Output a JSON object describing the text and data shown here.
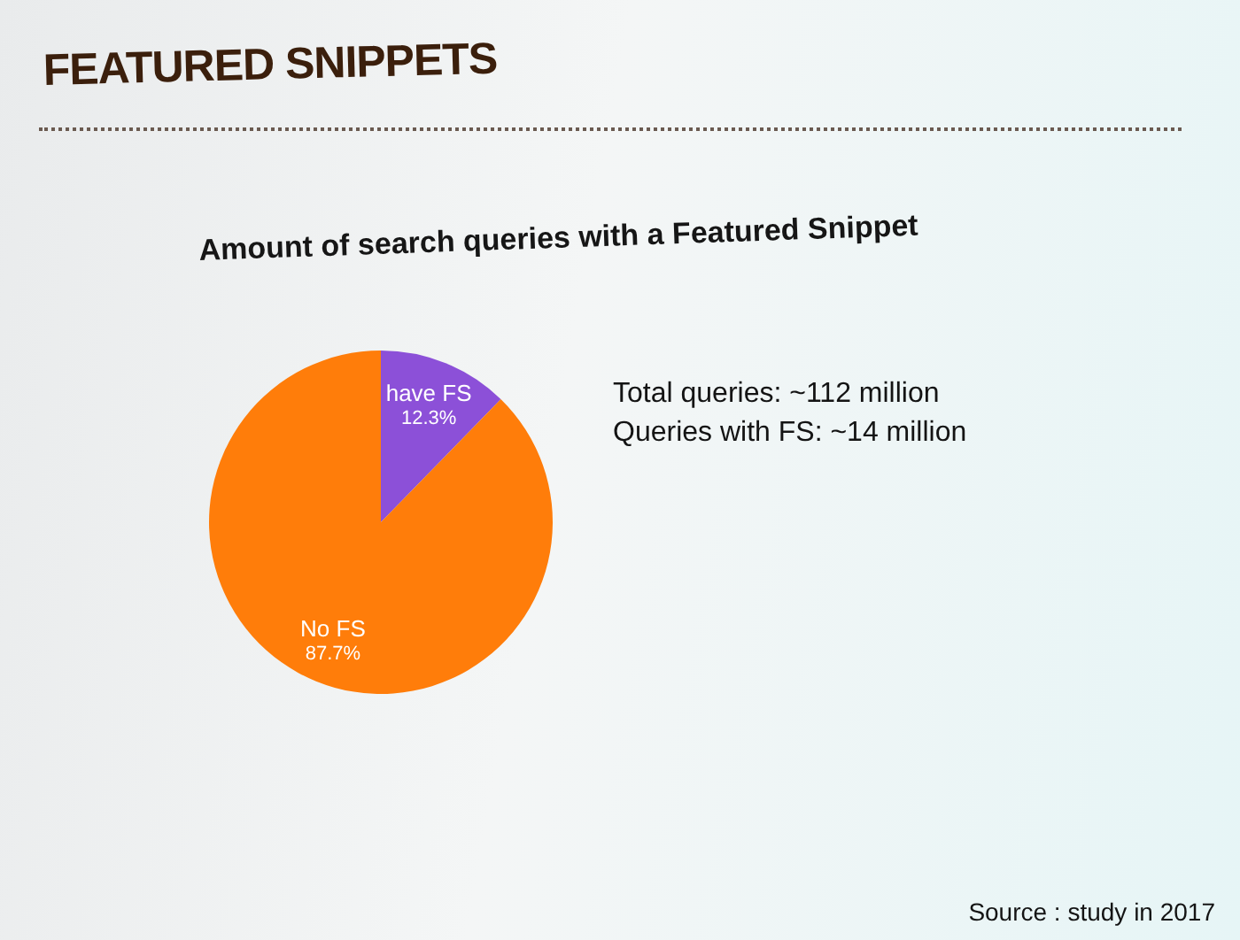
{
  "chart_data": {
    "type": "pie",
    "title": "FEATURED SNIPPETS",
    "subtitle": "Amount of search queries with a Featured Snippet",
    "categories": [
      "have FS",
      "No FS"
    ],
    "values": [
      12.3,
      87.7
    ],
    "colors": [
      "#8c50d8",
      "#ff7d0a"
    ],
    "value_labels": [
      "12.3%",
      "87.7%"
    ],
    "annotations": [
      "Total queries: ~112 million",
      "Queries with FS: ~14 million",
      "Source : study in 2017"
    ]
  }
}
